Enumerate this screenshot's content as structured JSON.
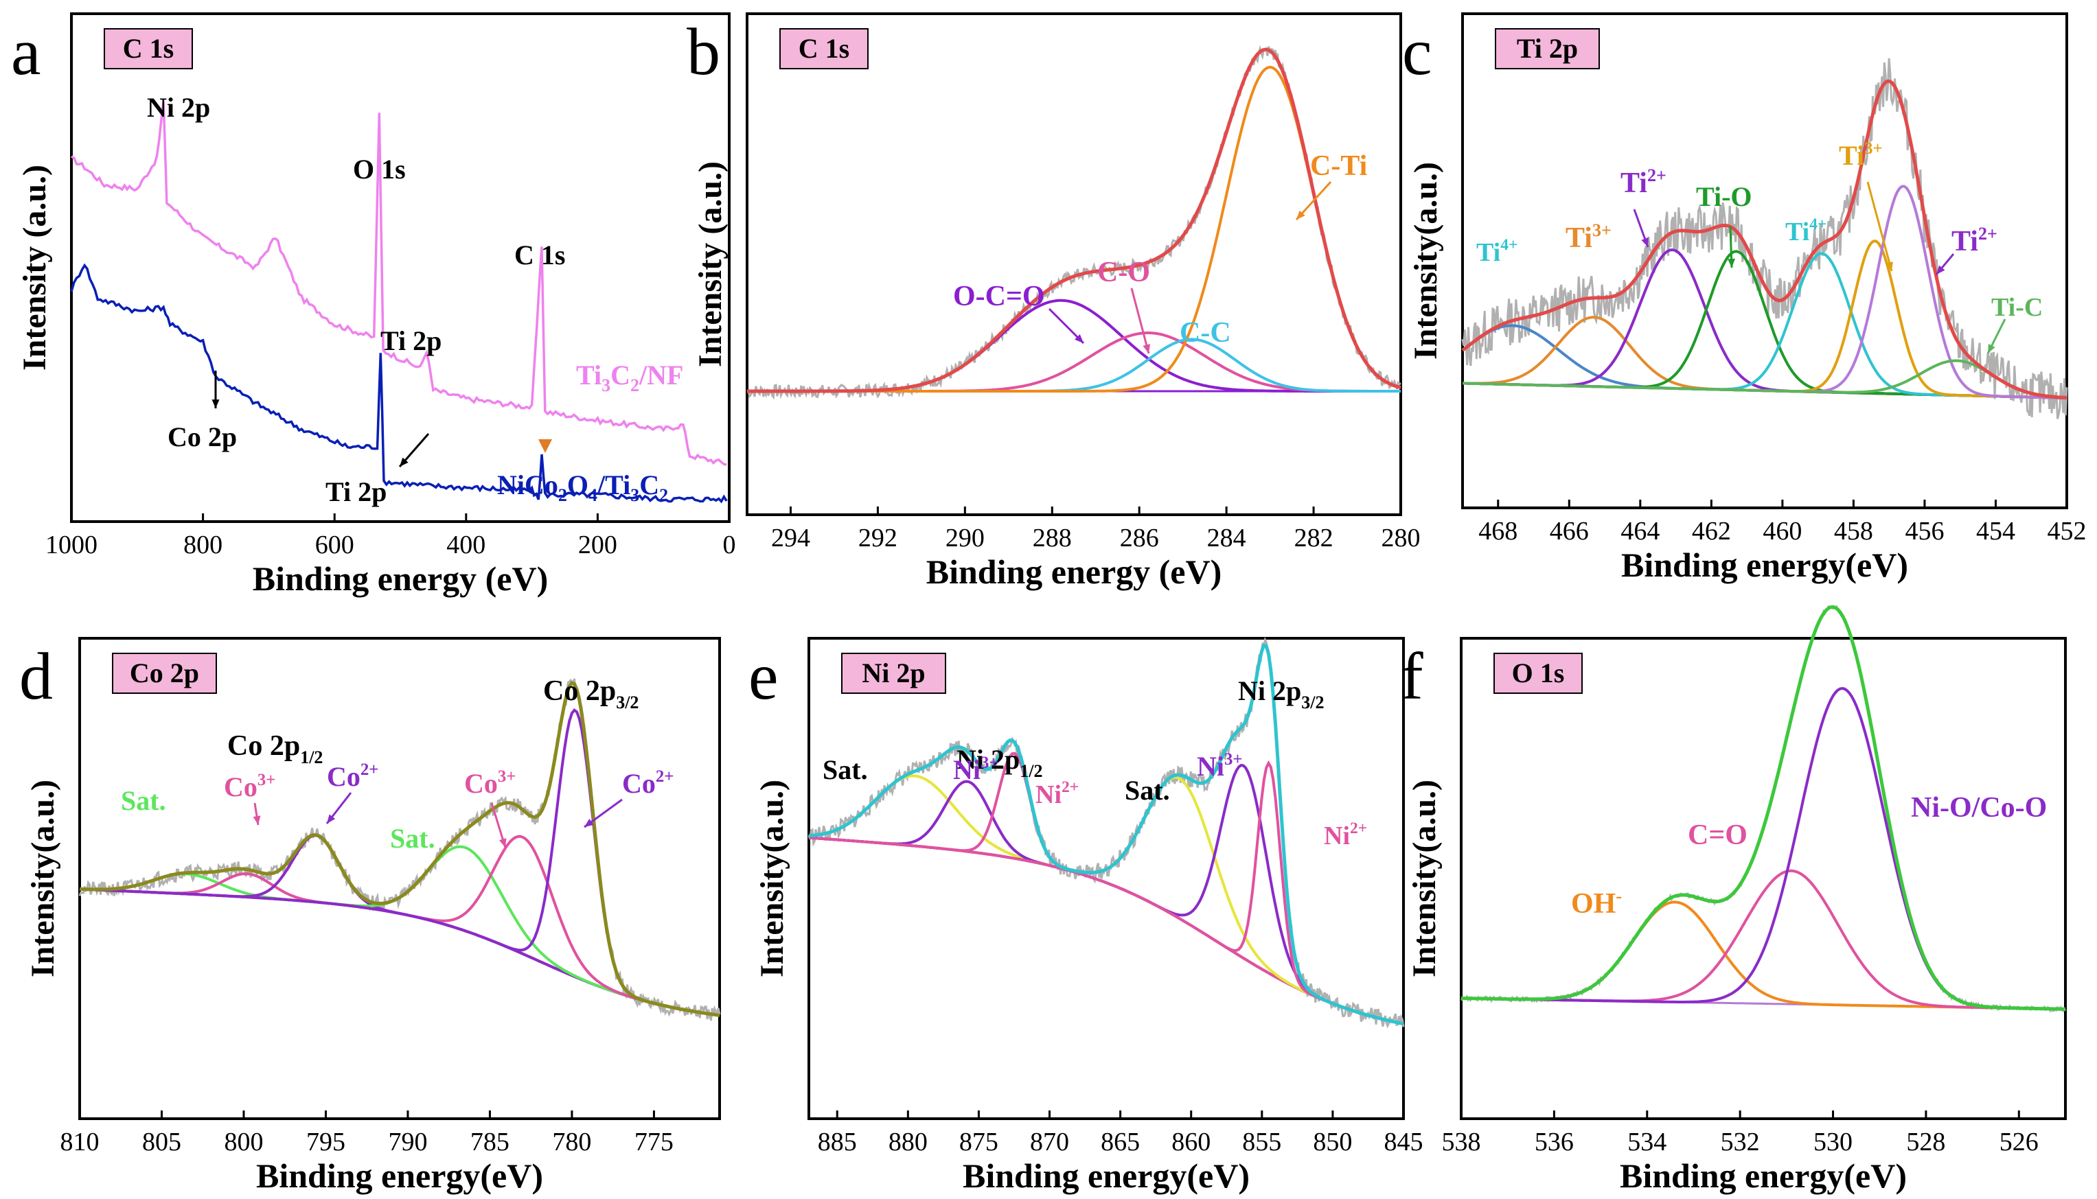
{
  "chart_data": [
    {
      "panel": "a",
      "type": "line",
      "tag": "C 1s",
      "xlabel": "Binding energy (eV)",
      "ylabel": "Intensity (a.u.)",
      "xlim": [
        1000,
        0
      ],
      "xticks": [
        "1000",
        "800",
        "600",
        "400",
        "200",
        "0"
      ],
      "series": [
        {
          "name": "Ti3C2/NF",
          "label_main": "Ti",
          "label_sub1": "3",
          "label_mid": "C",
          "label_sub2": "2",
          "label_end": "/NF",
          "color": "#ee82ee",
          "points": [
            [
              1000,
              0.8
            ],
            [
              980,
              0.78
            ],
            [
              950,
              0.74
            ],
            [
              900,
              0.73
            ],
            [
              870,
              0.8
            ],
            [
              860,
              0.93
            ],
            [
              855,
              0.7
            ],
            [
              800,
              0.62
            ],
            [
              720,
              0.55
            ],
            [
              690,
              0.62
            ],
            [
              650,
              0.48
            ],
            [
              600,
              0.42
            ],
            [
              540,
              0.39
            ],
            [
              532,
              0.9
            ],
            [
              526,
              0.36
            ],
            [
              470,
              0.32
            ],
            [
              460,
              0.36
            ],
            [
              450,
              0.27
            ],
            [
              400,
              0.25
            ],
            [
              300,
              0.23
            ],
            [
              285,
              0.6
            ],
            [
              280,
              0.22
            ],
            [
              200,
              0.2
            ],
            [
              100,
              0.18
            ],
            [
              70,
              0.19
            ],
            [
              60,
              0.12
            ],
            [
              0,
              0.1
            ]
          ]
        },
        {
          "name": "NiCo2O4/Ti3C2",
          "label_main": "NiCo",
          "label_sub1": "2",
          "label_mid": "O",
          "label_sub2": "4",
          "label_end": "/Ti₃C₂",
          "color": "#0a1fb5",
          "points": [
            [
              1000,
              0.5
            ],
            [
              980,
              0.56
            ],
            [
              960,
              0.48
            ],
            [
              900,
              0.45
            ],
            [
              860,
              0.46
            ],
            [
              850,
              0.42
            ],
            [
              800,
              0.38
            ],
            [
              780,
              0.3
            ],
            [
              720,
              0.24
            ],
            [
              650,
              0.18
            ],
            [
              580,
              0.14
            ],
            [
              535,
              0.14
            ],
            [
              530,
              0.36
            ],
            [
              525,
              0.06
            ],
            [
              450,
              0.05
            ],
            [
              300,
              0.04
            ],
            [
              290,
              0.02
            ],
            [
              285,
              0.12
            ],
            [
              280,
              0.03
            ],
            [
              200,
              0.03
            ],
            [
              100,
              0.02
            ],
            [
              0,
              0.02
            ]
          ]
        }
      ],
      "annotations": [
        "Ni 2p",
        "O 1s",
        "C 1s",
        "Ti 2p",
        "Co 2p",
        "Ti 2p"
      ]
    },
    {
      "panel": "b",
      "type": "line",
      "tag": "C 1s",
      "xlabel": "Binding energy (eV)",
      "ylabel": "Intensity (a.u.)",
      "xlim": [
        295,
        280
      ],
      "xticks": [
        "294",
        "292",
        "290",
        "288",
        "286",
        "284",
        "282",
        "280"
      ],
      "peaks": [
        {
          "name": "O-C=O",
          "center": 287.8,
          "amplitude": 0.28,
          "width": 1.4,
          "color": "#8b1fd0"
        },
        {
          "name": "C-O",
          "center": 285.8,
          "amplitude": 0.18,
          "width": 1.3,
          "color": "#e0529f"
        },
        {
          "name": "C-C",
          "center": 284.8,
          "amplitude": 0.16,
          "width": 1.0,
          "color": "#3ec2e6"
        },
        {
          "name": "C-Ti",
          "center": 283.0,
          "amplitude": 1.0,
          "width": 1.0,
          "color": "#f08a1c"
        }
      ],
      "envelope_color": "#e24a4a"
    },
    {
      "panel": "c",
      "type": "line",
      "tag": "Ti 2p",
      "xlabel": "Binding energy(eV)",
      "ylabel": "Intensity(a.u.)",
      "xlim": [
        469,
        452
      ],
      "xticks": [
        "468",
        "466",
        "464",
        "462",
        "460",
        "458",
        "456",
        "454",
        "452"
      ],
      "peaks": [
        {
          "name": "Ti4+",
          "center": 467.6,
          "amplitude": 0.17,
          "width": 1.3,
          "color": "#4a86c8"
        },
        {
          "name": "Ti3+",
          "center": 465.3,
          "amplitude": 0.2,
          "width": 1.0,
          "color": "#e58a2e"
        },
        {
          "name": "Ti2+",
          "center": 463.1,
          "amplitude": 0.4,
          "width": 0.9,
          "color": "#8a2bc8"
        },
        {
          "name": "Ti-O",
          "center": 461.3,
          "amplitude": 0.4,
          "width": 0.8,
          "color": "#1e9a2a"
        },
        {
          "name": "Ti4+",
          "center": 458.9,
          "amplitude": 0.4,
          "width": 0.8,
          "color": "#2ec4cf"
        },
        {
          "name": "Ti3+",
          "center": 457.4,
          "amplitude": 0.44,
          "width": 0.6,
          "color": "#e0a010"
        },
        {
          "name": "Ti2+",
          "center": 456.6,
          "amplitude": 0.6,
          "width": 0.7,
          "color": "#b57ad8"
        },
        {
          "name": "Ti-C",
          "center": 455.1,
          "amplitude": 0.1,
          "width": 1.0,
          "color": "#5bb55b"
        }
      ],
      "envelope_color": "#e24a4a"
    },
    {
      "panel": "d",
      "type": "line",
      "tag": "Co 2p",
      "xlabel": "Binding energy(eV)",
      "ylabel": "Intensity(a.u.)",
      "xlim": [
        810,
        771
      ],
      "xticks": [
        "810",
        "805",
        "800",
        "795",
        "790",
        "785",
        "780",
        "775"
      ],
      "peaks": [
        {
          "name": "Sat.",
          "center": 803.5,
          "amplitude": 0.06,
          "width": 2.0,
          "color": "#5ce65c"
        },
        {
          "name": "Co3+",
          "center": 799.8,
          "amplitude": 0.07,
          "width": 1.5,
          "color": "#e0529f"
        },
        {
          "name": "Co2+",
          "center": 795.6,
          "amplitude": 0.2,
          "width": 1.4,
          "color": "#8a2bc8"
        },
        {
          "name": "Sat.",
          "center": 786.5,
          "amplitude": 0.25,
          "width": 2.2,
          "color": "#5ce65c"
        },
        {
          "name": "Co3+",
          "center": 783.0,
          "amplitude": 0.35,
          "width": 1.8,
          "color": "#e0529f"
        },
        {
          "name": "Co2+",
          "center": 779.8,
          "amplitude": 0.8,
          "width": 1.1,
          "color": "#8a2bc8"
        }
      ],
      "envelope_color": "#8a8a1e",
      "labels": [
        "Co 2p",
        "1/2",
        "Co 2p",
        "3/2"
      ]
    },
    {
      "panel": "e",
      "type": "line",
      "tag": "Ni 2p",
      "xlabel": "Binding energy(eV)",
      "ylabel": "Intensity(a.u.)",
      "xlim": [
        887,
        845
      ],
      "xticks": [
        "885",
        "880",
        "875",
        "870",
        "865",
        "860",
        "855",
        "850",
        "845"
      ],
      "peaks": [
        {
          "name": "Sat.",
          "center": 879.5,
          "amplitude": 0.2,
          "width": 2.8,
          "color": "#e6e63c"
        },
        {
          "name": "Ni3+",
          "center": 875.8,
          "amplitude": 0.2,
          "width": 1.6,
          "color": "#8a2bc8"
        },
        {
          "name": "Ni2+",
          "center": 872.5,
          "amplitude": 0.3,
          "width": 1.1,
          "color": "#e0529f"
        },
        {
          "name": "Sat.",
          "center": 860.8,
          "amplitude": 0.4,
          "width": 2.4,
          "color": "#e6e63c"
        },
        {
          "name": "Ni3+",
          "center": 856.3,
          "amplitude": 0.55,
          "width": 1.6,
          "color": "#8a2bc8"
        },
        {
          "name": "Ni2+",
          "center": 854.5,
          "amplitude": 0.6,
          "width": 0.8,
          "color": "#e0529f"
        }
      ],
      "envelope_color": "#2ec4cf",
      "labels": [
        "Ni 2p",
        "1/2",
        "Ni 2p",
        "3/2"
      ]
    },
    {
      "panel": "f",
      "type": "line",
      "tag": "O 1s",
      "xlabel": "Binding energy(eV)",
      "ylabel": "Intensity(a.u.)",
      "xlim": [
        538,
        525
      ],
      "xticks": [
        "538",
        "536",
        "534",
        "532",
        "530",
        "528",
        "526"
      ],
      "peaks": [
        {
          "name": "OH-",
          "center": 533.4,
          "amplitude": 0.3,
          "width": 0.9,
          "color": "#f08a1c"
        },
        {
          "name": "C=O",
          "center": 530.9,
          "amplitude": 0.4,
          "width": 1.0,
          "color": "#e0529f"
        },
        {
          "name": "Ni-O/Co-O",
          "center": 529.8,
          "amplitude": 0.95,
          "width": 0.9,
          "color": "#8a2bc8"
        }
      ],
      "envelope_color": "#3cc83c"
    }
  ]
}
